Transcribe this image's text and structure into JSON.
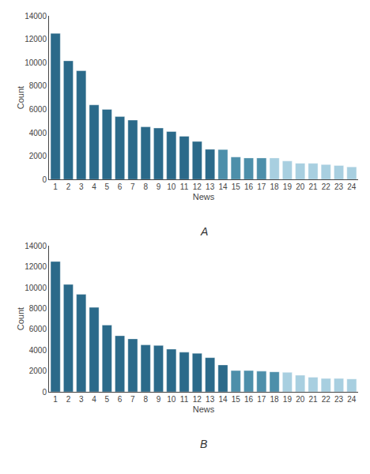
{
  "chart_data": [
    {
      "type": "bar",
      "title": "A",
      "xlabel": "News",
      "ylabel": "Count",
      "categories": [
        "1",
        "2",
        "3",
        "4",
        "5",
        "6",
        "7",
        "8",
        "9",
        "10",
        "11",
        "12",
        "13",
        "14",
        "15",
        "16",
        "17",
        "18",
        "19",
        "20",
        "21",
        "22",
        "23",
        "24"
      ],
      "values": [
        12500,
        10150,
        9300,
        6380,
        6000,
        5380,
        5080,
        4500,
        4400,
        4100,
        3700,
        3250,
        2580,
        2560,
        1920,
        1840,
        1840,
        1840,
        1580,
        1390,
        1380,
        1280,
        1200,
        1080
      ],
      "colors": [
        "#2b6a8a",
        "#2b6a8a",
        "#2b6a8a",
        "#2b6a8a",
        "#2b6a8a",
        "#2b6a8a",
        "#2b6a8a",
        "#2b6a8a",
        "#2b6a8a",
        "#2b6a8a",
        "#2b6a8a",
        "#2b6a8a",
        "#2b6a8a",
        "#4d8faa",
        "#4d8faa",
        "#4d8faa",
        "#4d8faa",
        "#a8cfe0",
        "#a8cfe0",
        "#a8cfe0",
        "#a8cfe0",
        "#a8cfe0",
        "#a8cfe0",
        "#a8cfe0"
      ],
      "ylim": [
        0,
        14000
      ],
      "yticks": [
        0,
        2000,
        4000,
        6000,
        8000,
        10000,
        12000,
        14000
      ],
      "grid": false
    },
    {
      "type": "bar",
      "title": "B",
      "xlabel": "News",
      "ylabel": "Count",
      "categories": [
        "1",
        "2",
        "3",
        "4",
        "5",
        "6",
        "7",
        "8",
        "9",
        "10",
        "11",
        "12",
        "13",
        "14",
        "15",
        "16",
        "17",
        "18",
        "19",
        "20",
        "21",
        "22",
        "23",
        "24"
      ],
      "values": [
        12500,
        10300,
        9350,
        8100,
        6400,
        5380,
        5080,
        4500,
        4450,
        4100,
        3800,
        3700,
        3280,
        2580,
        2040,
        2040,
        1980,
        1920,
        1870,
        1600,
        1400,
        1280,
        1280,
        1240
      ],
      "colors": [
        "#2b6a8a",
        "#2b6a8a",
        "#2b6a8a",
        "#2b6a8a",
        "#2b6a8a",
        "#2b6a8a",
        "#2b6a8a",
        "#2b6a8a",
        "#2b6a8a",
        "#2b6a8a",
        "#2b6a8a",
        "#2b6a8a",
        "#2b6a8a",
        "#2b6a8a",
        "#4d8faa",
        "#4d8faa",
        "#4d8faa",
        "#4d8faa",
        "#a8cfe0",
        "#a8cfe0",
        "#a8cfe0",
        "#a8cfe0",
        "#a8cfe0",
        "#a8cfe0"
      ],
      "ylim": [
        0,
        14000
      ],
      "yticks": [
        0,
        2000,
        4000,
        6000,
        8000,
        10000,
        12000,
        14000
      ],
      "grid": false
    }
  ]
}
